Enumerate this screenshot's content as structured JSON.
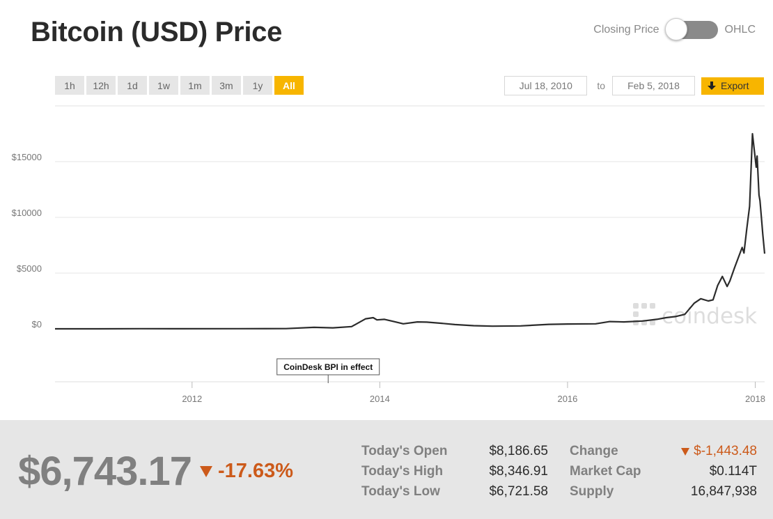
{
  "header": {
    "title": "Bitcoin (USD) Price",
    "toggle_left": "Closing Price",
    "toggle_right": "OHLC"
  },
  "ranges": [
    {
      "label": "1h",
      "active": false
    },
    {
      "label": "12h",
      "active": false
    },
    {
      "label": "1d",
      "active": false
    },
    {
      "label": "1w",
      "active": false
    },
    {
      "label": "1m",
      "active": false
    },
    {
      "label": "3m",
      "active": false
    },
    {
      "label": "1y",
      "active": false
    },
    {
      "label": "All",
      "active": true
    }
  ],
  "dates": {
    "from": "Jul 18, 2010",
    "to_label": "to",
    "to": "Feb 5, 2018",
    "export_label": "Export"
  },
  "watermark": "coindesk",
  "colors": {
    "accent": "#f7b500",
    "line": "#2b2b2b",
    "negative": "#cc5a1a"
  },
  "chart_data": {
    "type": "line",
    "title": "",
    "xlabel": "",
    "ylabel": "",
    "y_ticks": [
      {
        "value": 0,
        "label": "$0"
      },
      {
        "value": 5000,
        "label": "$5000"
      },
      {
        "value": 10000,
        "label": "$10000"
      },
      {
        "value": 15000,
        "label": "$15000"
      }
    ],
    "x_ticks": [
      {
        "value": 2012.0,
        "label": "2012"
      },
      {
        "value": 2014.0,
        "label": "2014"
      },
      {
        "value": 2016.0,
        "label": "2016"
      },
      {
        "value": 2018.0,
        "label": "2018"
      }
    ],
    "xlim": [
      2010.54,
      2018.1
    ],
    "ylim": [
      -5000,
      20000
    ],
    "grid": true,
    "annotation": {
      "x": 2013.45,
      "label": "CoinDesk BPI in effect"
    },
    "series": [
      {
        "x": [
          2010.54,
          2011.0,
          2011.45,
          2011.8,
          2012.5,
          2013.0,
          2013.3,
          2013.5,
          2013.7,
          2013.85,
          2013.93,
          2013.97,
          2014.05,
          2014.15,
          2014.25,
          2014.4,
          2014.5,
          2014.65,
          2014.8,
          2015.0,
          2015.2,
          2015.5,
          2015.8,
          2016.0,
          2016.3,
          2016.45,
          2016.6,
          2016.8,
          2016.95,
          2017.05,
          2017.15,
          2017.25,
          2017.35,
          2017.42,
          2017.5,
          2017.55,
          2017.6,
          2017.65,
          2017.7,
          2017.73,
          2017.78,
          2017.82,
          2017.86,
          2017.88,
          2017.91,
          2017.94,
          2017.97,
          2017.99,
          2018.01,
          2018.02,
          2018.04,
          2018.05,
          2018.07,
          2018.08,
          2018.1
        ],
        "y": [
          0,
          1,
          15,
          5,
          12,
          20,
          130,
          90,
          200,
          900,
          1000,
          800,
          850,
          650,
          450,
          620,
          600,
          500,
          380,
          280,
          240,
          260,
          400,
          430,
          450,
          650,
          620,
          700,
          850,
          1000,
          1100,
          1300,
          2300,
          2700,
          2500,
          2600,
          3900,
          4700,
          3800,
          4300,
          5500,
          6400,
          7300,
          6800,
          9000,
          11000,
          17500,
          16000,
          14500,
          15500,
          12000,
          11500,
          9500,
          8500,
          6743
        ]
      }
    ]
  },
  "stats": {
    "price": "$6,743.17",
    "change_pct": "-17.63%",
    "open_label": "Today's Open",
    "open_value": "$8,186.65",
    "high_label": "Today's High",
    "high_value": "$8,346.91",
    "low_label": "Today's Low",
    "low_value": "$6,721.58",
    "change_label": "Change",
    "change_value": "$-1,443.48",
    "cap_label": "Market Cap",
    "cap_value": "$0.114T",
    "supply_label": "Supply",
    "supply_value": "16,847,938"
  }
}
